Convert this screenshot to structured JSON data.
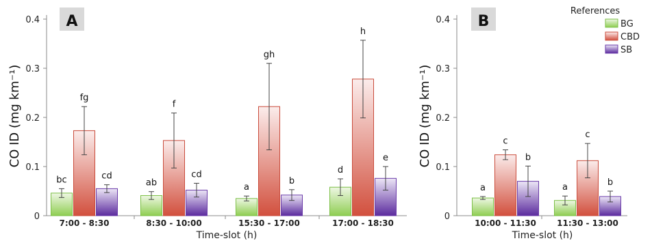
{
  "colors": {
    "BG": {
      "light": "#eef7e4",
      "dark": "#8fce52",
      "edge": "#7bbf45"
    },
    "CBD": {
      "light": "#fbeceb",
      "dark": "#d2503e",
      "edge": "#c94a3a"
    },
    "SB": {
      "light": "#ece6f6",
      "dark": "#5b2b9e",
      "edge": "#6a3aa8"
    },
    "panel_label_bg": "#d9d9d9"
  },
  "chart_data": [
    {
      "type": "bar",
      "panel": "A",
      "ylabel": "CO ID (mg km⁻¹)",
      "xlabel": "Time-slot (h)",
      "ylim": [
        0,
        0.4
      ],
      "yticks": [
        "0",
        "0.1",
        "0.2",
        "0.3",
        "0.4"
      ],
      "categories": [
        "7:00 - 8:30",
        "8:30 - 10:00",
        "15:30 - 17:00",
        "17:00 - 18:30"
      ],
      "series": [
        {
          "name": "BG",
          "values": [
            0.046,
            0.041,
            0.035,
            0.058
          ],
          "errors": [
            0.009,
            0.008,
            0.005,
            0.017
          ],
          "labels": [
            "bc",
            "ab",
            "a",
            "d"
          ]
        },
        {
          "name": "CBD",
          "values": [
            0.173,
            0.153,
            0.222,
            0.278
          ],
          "errors": [
            0.049,
            0.056,
            0.088,
            0.079
          ],
          "labels": [
            "fg",
            "f",
            "gh",
            "h"
          ]
        },
        {
          "name": "SB",
          "values": [
            0.055,
            0.052,
            0.042,
            0.076
          ],
          "errors": [
            0.008,
            0.014,
            0.011,
            0.024
          ],
          "labels": [
            "cd",
            "cd",
            "b",
            "e"
          ]
        }
      ]
    },
    {
      "type": "bar",
      "panel": "B",
      "ylabel": "CO ID (mg km⁻¹)",
      "xlabel": "Time-slot (h)",
      "ylim": [
        0,
        0.4
      ],
      "yticks": [
        "0",
        "0.1",
        "0.2",
        "0.3",
        "0.4"
      ],
      "categories": [
        "10:00 - 11:30",
        "11:30 - 13:00"
      ],
      "series": [
        {
          "name": "BG",
          "values": [
            0.036,
            0.031
          ],
          "errors": [
            0.003,
            0.009
          ],
          "labels": [
            "a",
            "a"
          ]
        },
        {
          "name": "CBD",
          "values": [
            0.124,
            0.112
          ],
          "errors": [
            0.01,
            0.035
          ],
          "labels": [
            "c",
            "c"
          ]
        },
        {
          "name": "SB",
          "values": [
            0.07,
            0.039
          ],
          "errors": [
            0.031,
            0.011
          ],
          "labels": [
            "b",
            "b"
          ]
        }
      ]
    }
  ],
  "legend": {
    "title": "References",
    "items": [
      "BG",
      "CBD",
      "SB"
    ]
  }
}
